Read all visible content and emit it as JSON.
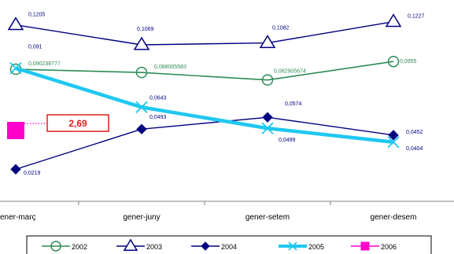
{
  "chart_data": {
    "type": "line",
    "title": "",
    "xlabel": "",
    "ylabel": "",
    "categories": [
      "gener-març",
      "gener-juny",
      "gener-setem",
      "gener-desem"
    ],
    "ylim": [
      0.0,
      0.13
    ],
    "grid": false,
    "legend_position": "bottom",
    "series": [
      {
        "name": "2002",
        "color": "#2E8B57",
        "marker": "circle",
        "values": [
          0.090238777,
          0.088005583,
          0.082905674,
          0.0955
        ],
        "labels": [
          "0,090238777",
          "0,088005583",
          "0,082905674",
          "0,0955"
        ]
      },
      {
        "name": "2003",
        "color": "#000080",
        "marker": "triangle",
        "values": [
          0.1205,
          0.1069,
          0.1082,
          0.1227
        ],
        "labels": [
          "0,1205",
          "0,1069",
          "0,1082",
          "0,1227"
        ]
      },
      {
        "name": "2004",
        "color": "#000080",
        "marker": "diamond",
        "values": [
          0.0219,
          0.0493,
          0.0574,
          0.0452
        ],
        "labels": [
          "0,0219",
          "0,0493",
          "0,0574",
          "0,0452"
        ]
      },
      {
        "name": "2005",
        "color": "#1EC8F0",
        "marker": "x",
        "values": [
          0.091,
          0.0643,
          0.0499,
          0.0404
        ],
        "labels": [
          "0,091",
          "0,0643",
          "0,0499",
          "0,0404"
        ]
      },
      {
        "name": "2006",
        "color": "#FF00CC",
        "marker": "square",
        "values": [
          null,
          null,
          null,
          null
        ],
        "labels": []
      }
    ],
    "annotation": {
      "text": "2,69",
      "color": "#E0201A"
    }
  }
}
